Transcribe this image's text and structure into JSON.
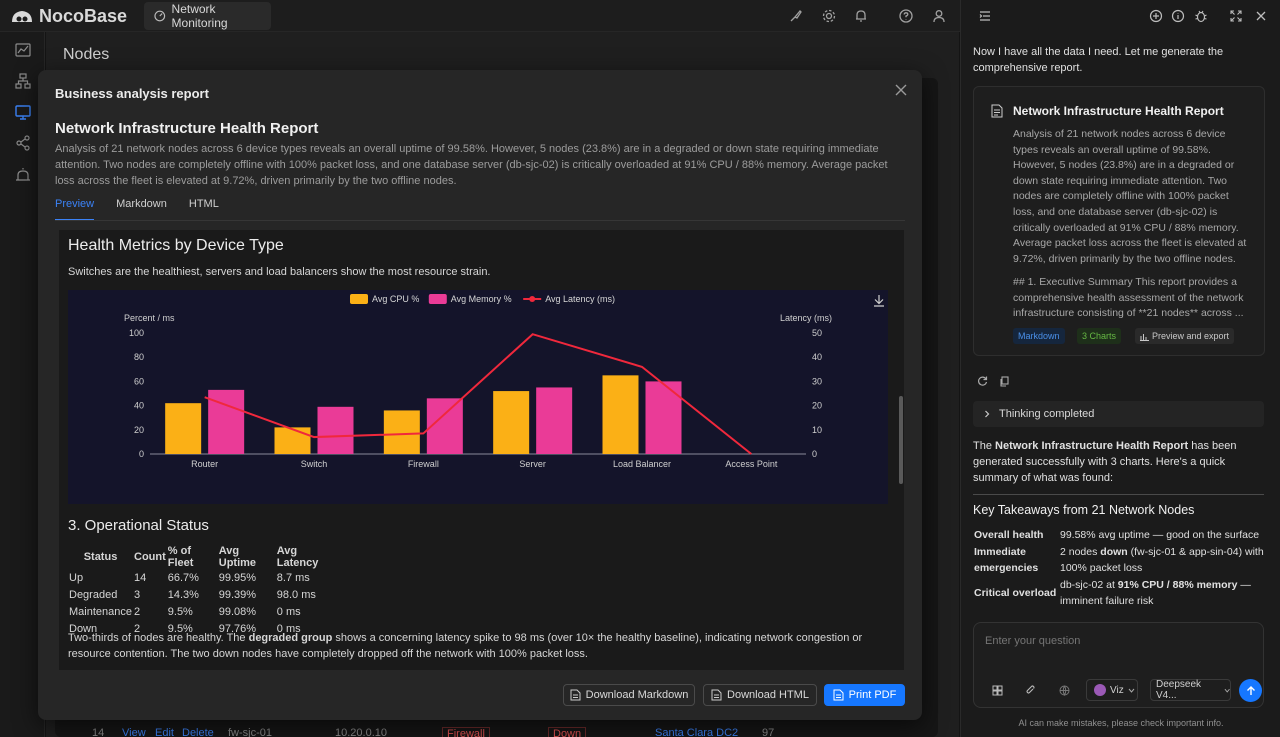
{
  "app": {
    "brand": "NocoBase",
    "tab_label": "Network Monitoring"
  },
  "page": {
    "title": "Nodes"
  },
  "background_row": {
    "count": "14",
    "view": "View",
    "edit": "Edit",
    "delete": "Delete",
    "name": "fw-sjc-01",
    "ip": "10.20.0.10",
    "type": "Firewall",
    "status": "Down",
    "location": "Santa Clara DC2",
    "value": "97"
  },
  "modal": {
    "title": "Business analysis report",
    "report_title": "Network Infrastructure Health Report",
    "report_desc": "Analysis of 21 network nodes across 6 device types reveals an overall uptime of 99.58%. However, 5 nodes (23.8%) are in a degraded or down state requiring immediate attention. Two nodes are completely offline with 100% packet loss, and one database server (db-sjc-02) is critically overloaded at 91% CPU / 88% memory. Average packet loss across the fleet is elevated at 9.72%, driven primarily by the two offline nodes.",
    "tabs": [
      "Preview",
      "Markdown",
      "HTML"
    ],
    "section_title": "Health Metrics by Device Type",
    "section_text": "Switches are the healthiest, servers and load balancers show the most resource strain.",
    "ops_title": "3. Operational Status",
    "ops_headers": [
      "Status",
      "Count",
      "% of Fleet",
      "Avg Uptime",
      "Avg Latency"
    ],
    "ops_rows": [
      [
        "Up",
        "14",
        "66.7%",
        "99.95%",
        "8.7 ms"
      ],
      [
        "Degraded",
        "3",
        "14.3%",
        "99.39%",
        "98.0 ms"
      ],
      [
        "Maintenance",
        "2",
        "9.5%",
        "99.08%",
        "0 ms"
      ],
      [
        "Down",
        "2",
        "9.5%",
        "97.76%",
        "0 ms"
      ]
    ],
    "ops_text_a": "Two-thirds of nodes are healthy. The ",
    "ops_text_b": "degraded group",
    "ops_text_c": " shows a concerning latency spike to 98 ms (over 10× the healthy baseline), indicating network congestion or resource contention. The two down nodes have completely dropped off the network with 100% packet loss.",
    "buttons": {
      "download_md": "Download Markdown",
      "download_html": "Download HTML",
      "print_pdf": "Print PDF"
    }
  },
  "chart_data": {
    "type": "bar",
    "categories": [
      "Router",
      "Switch",
      "Firewall",
      "Server",
      "Load Balancer",
      "Access Point"
    ],
    "series": [
      {
        "name": "Avg CPU %",
        "type": "bar",
        "axis": "left",
        "color": "#fbb016",
        "values": [
          42,
          22,
          36,
          52,
          65,
          0
        ]
      },
      {
        "name": "Avg Memory %",
        "type": "bar",
        "axis": "left",
        "color": "#ea3b97",
        "values": [
          53,
          39,
          46,
          55,
          60,
          0
        ]
      },
      {
        "name": "Avg Latency (ms)",
        "type": "line",
        "axis": "right",
        "color": "#f0283c",
        "values": [
          23.5,
          7,
          8.5,
          49.5,
          36,
          0
        ]
      }
    ],
    "ylabel_left": "Percent / ms",
    "ylabel_right": "Latency (ms)",
    "ylim_left": [
      0,
      100
    ],
    "ylim_right": [
      0,
      50
    ],
    "yticks_left": [
      "100",
      "80",
      "60",
      "40",
      "20",
      "0"
    ],
    "yticks_right": [
      "50",
      "40",
      "30",
      "20",
      "10",
      "0"
    ],
    "legend_position": "top-center",
    "grid": false
  },
  "right_panel": {
    "msg_intro": "Now I have all the data I need. Let me generate the comprehensive report.",
    "card_title": "Network Infrastructure Health Report",
    "card_text": "Analysis of 21 network nodes across 6 device types reveals an overall uptime of 99.58%. However, 5 nodes (23.8%) are in a degraded or down state requiring immediate attention. Two nodes are completely offline with 100% packet loss, and one database server (db-sjc-02) is critically overloaded at 91% CPU / 88% memory. Average packet loss across the fleet is elevated at 9.72%, driven primarily by the two offline nodes.",
    "card_text2": "## 1. Executive Summary This report provides a comprehensive health assessment of the network infrastructure consisting of **21 nodes** across ...",
    "tags": {
      "markdown": "Markdown",
      "charts": "3 Charts",
      "preview": "Preview and export"
    },
    "thinking": "Thinking completed",
    "summary_a": "The ",
    "summary_b": "Network Infrastructure Health Report",
    "summary_c": " has been generated successfully with 3 charts. Here's a quick summary of what was found:",
    "takeaways_title": "Key Takeaways from 21 Network Nodes",
    "takeaways": [
      {
        "k": "Overall health",
        "v": "99.58% avg uptime — good on the surface"
      },
      {
        "k": "Immediate emergencies",
        "v1": "2 nodes ",
        "v2": "down",
        "v3": " (fw-sjc-01 & app-sin-04) with 100% packet loss"
      },
      {
        "k": "Critical overload",
        "v1": "db-sjc-02 at ",
        "v2": "91% CPU / 88% memory",
        "v3": " — imminent failure risk"
      }
    ],
    "input_placeholder": "Enter your question",
    "agent": "Viz",
    "model": "Deepseek V4...",
    "disclaimer": "AI can make mistakes, please check important info."
  }
}
